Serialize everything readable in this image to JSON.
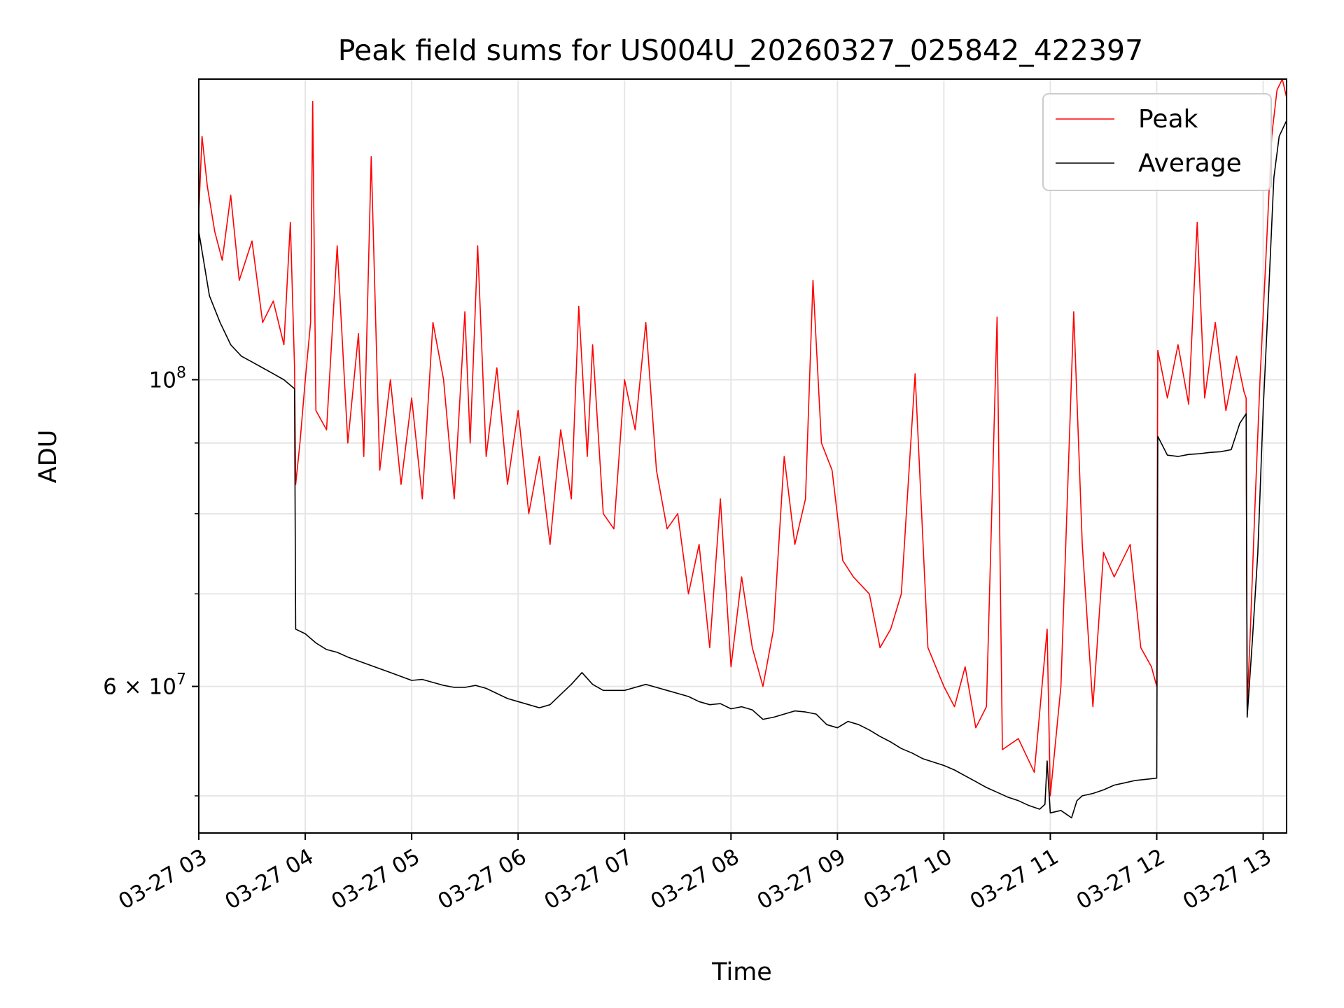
{
  "chart_data": {
    "type": "line",
    "title": "Peak field sums for US004U_20260327_025842_422397",
    "xlabel": "Time",
    "ylabel": "ADU",
    "yscale": "log",
    "grid": true,
    "legend_position": "top-right",
    "x_range_hours": [
      3.0,
      13.22
    ],
    "ylim": [
      47000000,
      165000000
    ],
    "x_ticks": [
      "03-27 03",
      "03-27 04",
      "03-27 05",
      "03-27 06",
      "03-27 07",
      "03-27 08",
      "03-27 09",
      "03-27 10",
      "03-27 11",
      "03-27 12",
      "03-27 13"
    ],
    "y_ticks": [
      {
        "value": 100000000,
        "mantissa": "10",
        "exp": "8"
      },
      {
        "value": 60000000,
        "mantissa": "6 × 10",
        "exp": "7"
      }
    ],
    "y_minor_ticks": [
      50000000,
      70000000,
      80000000,
      90000000
    ],
    "series": [
      {
        "name": "Peak",
        "color": "#ff0000",
        "points": [
          [
            3.0,
            132000000
          ],
          [
            3.03,
            150000000
          ],
          [
            3.08,
            138000000
          ],
          [
            3.15,
            128000000
          ],
          [
            3.22,
            122000000
          ],
          [
            3.3,
            136000000
          ],
          [
            3.38,
            118000000
          ],
          [
            3.5,
            126000000
          ],
          [
            3.6,
            110000000
          ],
          [
            3.7,
            114000000
          ],
          [
            3.8,
            106000000
          ],
          [
            3.86,
            130000000
          ],
          [
            3.9,
            102000000
          ],
          [
            3.91,
            84000000
          ],
          [
            3.95,
            90000000
          ],
          [
            4.0,
            100000000
          ],
          [
            4.05,
            110000000
          ],
          [
            4.07,
            159000000
          ],
          [
            4.1,
            95000000
          ],
          [
            4.2,
            92000000
          ],
          [
            4.3,
            125000000
          ],
          [
            4.4,
            90000000
          ],
          [
            4.5,
            108000000
          ],
          [
            4.55,
            88000000
          ],
          [
            4.62,
            145000000
          ],
          [
            4.7,
            86000000
          ],
          [
            4.8,
            100000000
          ],
          [
            4.9,
            84000000
          ],
          [
            5.0,
            97000000
          ],
          [
            5.1,
            82000000
          ],
          [
            5.2,
            110000000
          ],
          [
            5.3,
            100000000
          ],
          [
            5.4,
            82000000
          ],
          [
            5.5,
            112000000
          ],
          [
            5.55,
            90000000
          ],
          [
            5.62,
            125000000
          ],
          [
            5.7,
            88000000
          ],
          [
            5.8,
            102000000
          ],
          [
            5.9,
            84000000
          ],
          [
            6.0,
            95000000
          ],
          [
            6.1,
            80000000
          ],
          [
            6.2,
            88000000
          ],
          [
            6.3,
            76000000
          ],
          [
            6.4,
            92000000
          ],
          [
            6.5,
            82000000
          ],
          [
            6.57,
            113000000
          ],
          [
            6.65,
            88000000
          ],
          [
            6.7,
            106000000
          ],
          [
            6.8,
            80000000
          ],
          [
            6.9,
            78000000
          ],
          [
            7.0,
            100000000
          ],
          [
            7.1,
            92000000
          ],
          [
            7.2,
            110000000
          ],
          [
            7.3,
            86000000
          ],
          [
            7.4,
            78000000
          ],
          [
            7.5,
            80000000
          ],
          [
            7.6,
            70000000
          ],
          [
            7.7,
            76000000
          ],
          [
            7.8,
            64000000
          ],
          [
            7.9,
            82000000
          ],
          [
            8.0,
            62000000
          ],
          [
            8.1,
            72000000
          ],
          [
            8.2,
            64000000
          ],
          [
            8.3,
            60000000
          ],
          [
            8.4,
            66000000
          ],
          [
            8.5,
            88000000
          ],
          [
            8.6,
            76000000
          ],
          [
            8.7,
            82000000
          ],
          [
            8.77,
            118000000
          ],
          [
            8.85,
            90000000
          ],
          [
            8.95,
            86000000
          ],
          [
            9.05,
            74000000
          ],
          [
            9.15,
            72000000
          ],
          [
            9.3,
            70000000
          ],
          [
            9.4,
            64000000
          ],
          [
            9.5,
            66000000
          ],
          [
            9.6,
            70000000
          ],
          [
            9.73,
            101000000
          ],
          [
            9.85,
            64000000
          ],
          [
            10.0,
            60000000
          ],
          [
            10.1,
            58000000
          ],
          [
            10.2,
            62000000
          ],
          [
            10.3,
            56000000
          ],
          [
            10.4,
            58000000
          ],
          [
            10.5,
            111000000
          ],
          [
            10.55,
            54000000
          ],
          [
            10.7,
            55000000
          ],
          [
            10.85,
            52000000
          ],
          [
            10.97,
            66000000
          ],
          [
            11.0,
            50000000
          ],
          [
            11.1,
            60000000
          ],
          [
            11.22,
            112000000
          ],
          [
            11.3,
            76000000
          ],
          [
            11.4,
            58000000
          ],
          [
            11.5,
            75000000
          ],
          [
            11.6,
            72000000
          ],
          [
            11.75,
            76000000
          ],
          [
            11.85,
            64000000
          ],
          [
            11.95,
            62000000
          ],
          [
            12.0,
            60000000
          ],
          [
            12.01,
            105000000
          ],
          [
            12.1,
            97000000
          ],
          [
            12.2,
            106000000
          ],
          [
            12.3,
            96000000
          ],
          [
            12.38,
            130000000
          ],
          [
            12.45,
            97000000
          ],
          [
            12.55,
            110000000
          ],
          [
            12.65,
            95000000
          ],
          [
            12.75,
            104000000
          ],
          [
            12.82,
            98000000
          ],
          [
            12.84,
            97000000
          ],
          [
            12.85,
            58000000
          ],
          [
            12.88,
            66000000
          ],
          [
            12.92,
            80000000
          ],
          [
            12.97,
            100000000
          ],
          [
            13.02,
            120000000
          ],
          [
            13.08,
            150000000
          ],
          [
            13.13,
            162000000
          ],
          [
            13.18,
            165000000
          ],
          [
            13.22,
            160000000
          ]
        ]
      },
      {
        "name": "Average",
        "color": "#000000",
        "points": [
          [
            3.0,
            128000000
          ],
          [
            3.1,
            115000000
          ],
          [
            3.2,
            110000000
          ],
          [
            3.3,
            106000000
          ],
          [
            3.4,
            104000000
          ],
          [
            3.5,
            103000000
          ],
          [
            3.6,
            102000000
          ],
          [
            3.7,
            101000000
          ],
          [
            3.8,
            100000000
          ],
          [
            3.9,
            98500000
          ],
          [
            3.91,
            66000000
          ],
          [
            4.0,
            65500000
          ],
          [
            4.1,
            64500000
          ],
          [
            4.2,
            63800000
          ],
          [
            4.3,
            63500000
          ],
          [
            4.4,
            63000000
          ],
          [
            4.5,
            62600000
          ],
          [
            4.6,
            62200000
          ],
          [
            4.7,
            61800000
          ],
          [
            4.8,
            61400000
          ],
          [
            4.9,
            61000000
          ],
          [
            5.0,
            60600000
          ],
          [
            5.1,
            60700000
          ],
          [
            5.2,
            60400000
          ],
          [
            5.3,
            60100000
          ],
          [
            5.4,
            59900000
          ],
          [
            5.5,
            59900000
          ],
          [
            5.6,
            60100000
          ],
          [
            5.7,
            59800000
          ],
          [
            5.8,
            59300000
          ],
          [
            5.9,
            58800000
          ],
          [
            6.0,
            58500000
          ],
          [
            6.1,
            58200000
          ],
          [
            6.2,
            57900000
          ],
          [
            6.3,
            58200000
          ],
          [
            6.4,
            59200000
          ],
          [
            6.5,
            60200000
          ],
          [
            6.6,
            61400000
          ],
          [
            6.7,
            60200000
          ],
          [
            6.8,
            59600000
          ],
          [
            6.9,
            59600000
          ],
          [
            7.0,
            59600000
          ],
          [
            7.1,
            59900000
          ],
          [
            7.2,
            60200000
          ],
          [
            7.3,
            59900000
          ],
          [
            7.4,
            59600000
          ],
          [
            7.5,
            59300000
          ],
          [
            7.6,
            59000000
          ],
          [
            7.7,
            58500000
          ],
          [
            7.8,
            58200000
          ],
          [
            7.9,
            58300000
          ],
          [
            8.0,
            57800000
          ],
          [
            8.1,
            58000000
          ],
          [
            8.2,
            57700000
          ],
          [
            8.3,
            56800000
          ],
          [
            8.4,
            57000000
          ],
          [
            8.5,
            57300000
          ],
          [
            8.6,
            57600000
          ],
          [
            8.7,
            57500000
          ],
          [
            8.8,
            57300000
          ],
          [
            8.9,
            56300000
          ],
          [
            9.0,
            56000000
          ],
          [
            9.1,
            56600000
          ],
          [
            9.2,
            56300000
          ],
          [
            9.3,
            55800000
          ],
          [
            9.4,
            55200000
          ],
          [
            9.5,
            54700000
          ],
          [
            9.6,
            54100000
          ],
          [
            9.7,
            53700000
          ],
          [
            9.8,
            53200000
          ],
          [
            9.9,
            52900000
          ],
          [
            10.0,
            52600000
          ],
          [
            10.1,
            52200000
          ],
          [
            10.2,
            51700000
          ],
          [
            10.3,
            51200000
          ],
          [
            10.4,
            50700000
          ],
          [
            10.5,
            50300000
          ],
          [
            10.6,
            49900000
          ],
          [
            10.7,
            49600000
          ],
          [
            10.8,
            49200000
          ],
          [
            10.9,
            48900000
          ],
          [
            10.95,
            49300000
          ],
          [
            10.97,
            53000000
          ],
          [
            11.0,
            48600000
          ],
          [
            11.1,
            48800000
          ],
          [
            11.2,
            48200000
          ],
          [
            11.25,
            49600000
          ],
          [
            11.3,
            50000000
          ],
          [
            11.4,
            50200000
          ],
          [
            11.5,
            50500000
          ],
          [
            11.6,
            50900000
          ],
          [
            11.7,
            51100000
          ],
          [
            11.8,
            51300000
          ],
          [
            11.9,
            51400000
          ],
          [
            12.0,
            51500000
          ],
          [
            12.01,
            91000000
          ],
          [
            12.1,
            88200000
          ],
          [
            12.2,
            88000000
          ],
          [
            12.3,
            88300000
          ],
          [
            12.4,
            88400000
          ],
          [
            12.5,
            88600000
          ],
          [
            12.6,
            88700000
          ],
          [
            12.7,
            89000000
          ],
          [
            12.78,
            93000000
          ],
          [
            12.84,
            94500000
          ],
          [
            12.85,
            57000000
          ],
          [
            12.9,
            65000000
          ],
          [
            12.95,
            75000000
          ],
          [
            13.0,
            95000000
          ],
          [
            13.05,
            115000000
          ],
          [
            13.1,
            140000000
          ],
          [
            13.15,
            150000000
          ],
          [
            13.22,
            154000000
          ]
        ]
      }
    ]
  }
}
